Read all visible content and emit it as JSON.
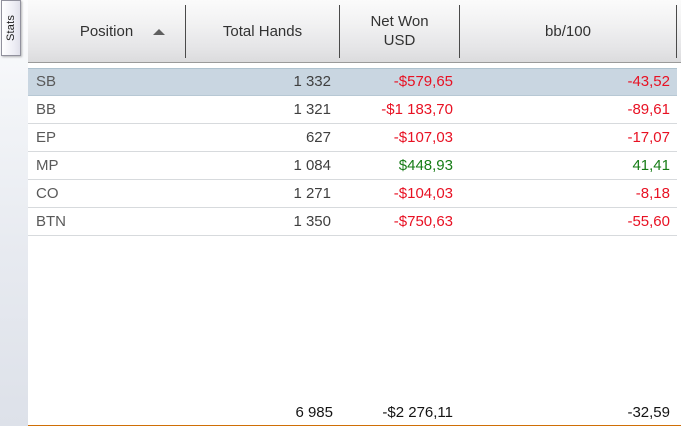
{
  "sidebar_tab": {
    "label": "Stats"
  },
  "header": {
    "columns": [
      {
        "id": "position",
        "label": "Position",
        "sort": "ascending"
      },
      {
        "id": "total_hands",
        "label": "Total Hands"
      },
      {
        "id": "net_won",
        "label": "Net Won",
        "label2": "USD"
      },
      {
        "id": "bb100",
        "label": "bb/100"
      }
    ]
  },
  "rows": [
    {
      "position": "SB",
      "total_hands": "1 332",
      "net_won": "-$579,65",
      "bb100": "-43,52",
      "selected": true
    },
    {
      "position": "BB",
      "total_hands": "1 321",
      "net_won": "-$1 183,70",
      "bb100": "-89,61",
      "selected": false
    },
    {
      "position": "EP",
      "total_hands": "627",
      "net_won": "-$107,03",
      "bb100": "-17,07",
      "selected": false
    },
    {
      "position": "MP",
      "total_hands": "1 084",
      "net_won": "$448,93",
      "bb100": "41,41",
      "selected": false
    },
    {
      "position": "CO",
      "total_hands": "1 271",
      "net_won": "-$104,03",
      "bb100": "-8,18",
      "selected": false
    },
    {
      "position": "BTN",
      "total_hands": "1 350",
      "net_won": "-$750,63",
      "bb100": "-55,60",
      "selected": false
    }
  ],
  "totals": {
    "total_hands": "6 985",
    "net_won": "-$2 276,11",
    "bb100": "-32,59"
  },
  "colors": {
    "negative": "#e81123",
    "positive": "#167c16",
    "selected_row_bg": "#c9d6e1",
    "footer_orange": "#ff9330"
  }
}
